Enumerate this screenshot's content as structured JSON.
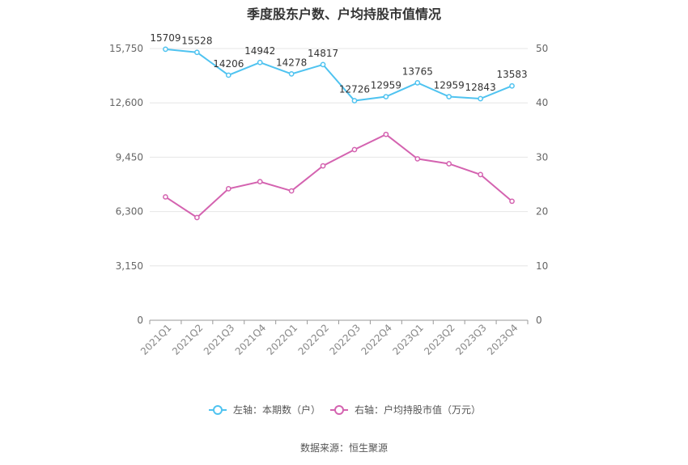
{
  "chart_data": {
    "type": "line",
    "title": "季度股东户数、户均持股市值情况",
    "categories": [
      "2021Q1",
      "2021Q2",
      "2021Q3",
      "2021Q4",
      "2022Q1",
      "2022Q2",
      "2022Q3",
      "2022Q4",
      "2023Q1",
      "2023Q2",
      "2023Q3",
      "2023Q4"
    ],
    "left_axis": {
      "ylim": [
        0,
        15750
      ],
      "ticks": [
        0,
        3150,
        6300,
        9450,
        12600,
        15750
      ],
      "tick_labels": [
        "0",
        "3,150",
        "6,300",
        "9,450",
        "12,600",
        "15,750"
      ]
    },
    "right_axis": {
      "ylim": [
        0,
        50
      ],
      "ticks": [
        0,
        10,
        20,
        30,
        40,
        50
      ],
      "tick_labels": [
        "0",
        "10",
        "20",
        "30",
        "40",
        "50"
      ]
    },
    "series": [
      {
        "name": "左轴：本期数（户）",
        "axis": "left",
        "color": "#4fc3f0",
        "values": [
          15709,
          15528,
          14206,
          14942,
          14278,
          14817,
          12726,
          12959,
          13765,
          12959,
          12843,
          13583
        ],
        "labels": [
          "15709",
          "15528",
          "14206",
          "14942",
          "14278",
          "14817",
          "12726",
          "12959",
          "13765",
          "12959",
          "12843",
          "13583"
        ]
      },
      {
        "name": "右轴：户均持股市值（万元）",
        "axis": "right",
        "color": "#d463b0",
        "values": [
          22.7,
          18.9,
          24.2,
          25.5,
          23.8,
          28.4,
          31.4,
          34.2,
          29.7,
          28.8,
          26.8,
          21.9
        ]
      }
    ],
    "grid": true,
    "legend_position": "bottom"
  },
  "source": "数据来源：恒生聚源"
}
